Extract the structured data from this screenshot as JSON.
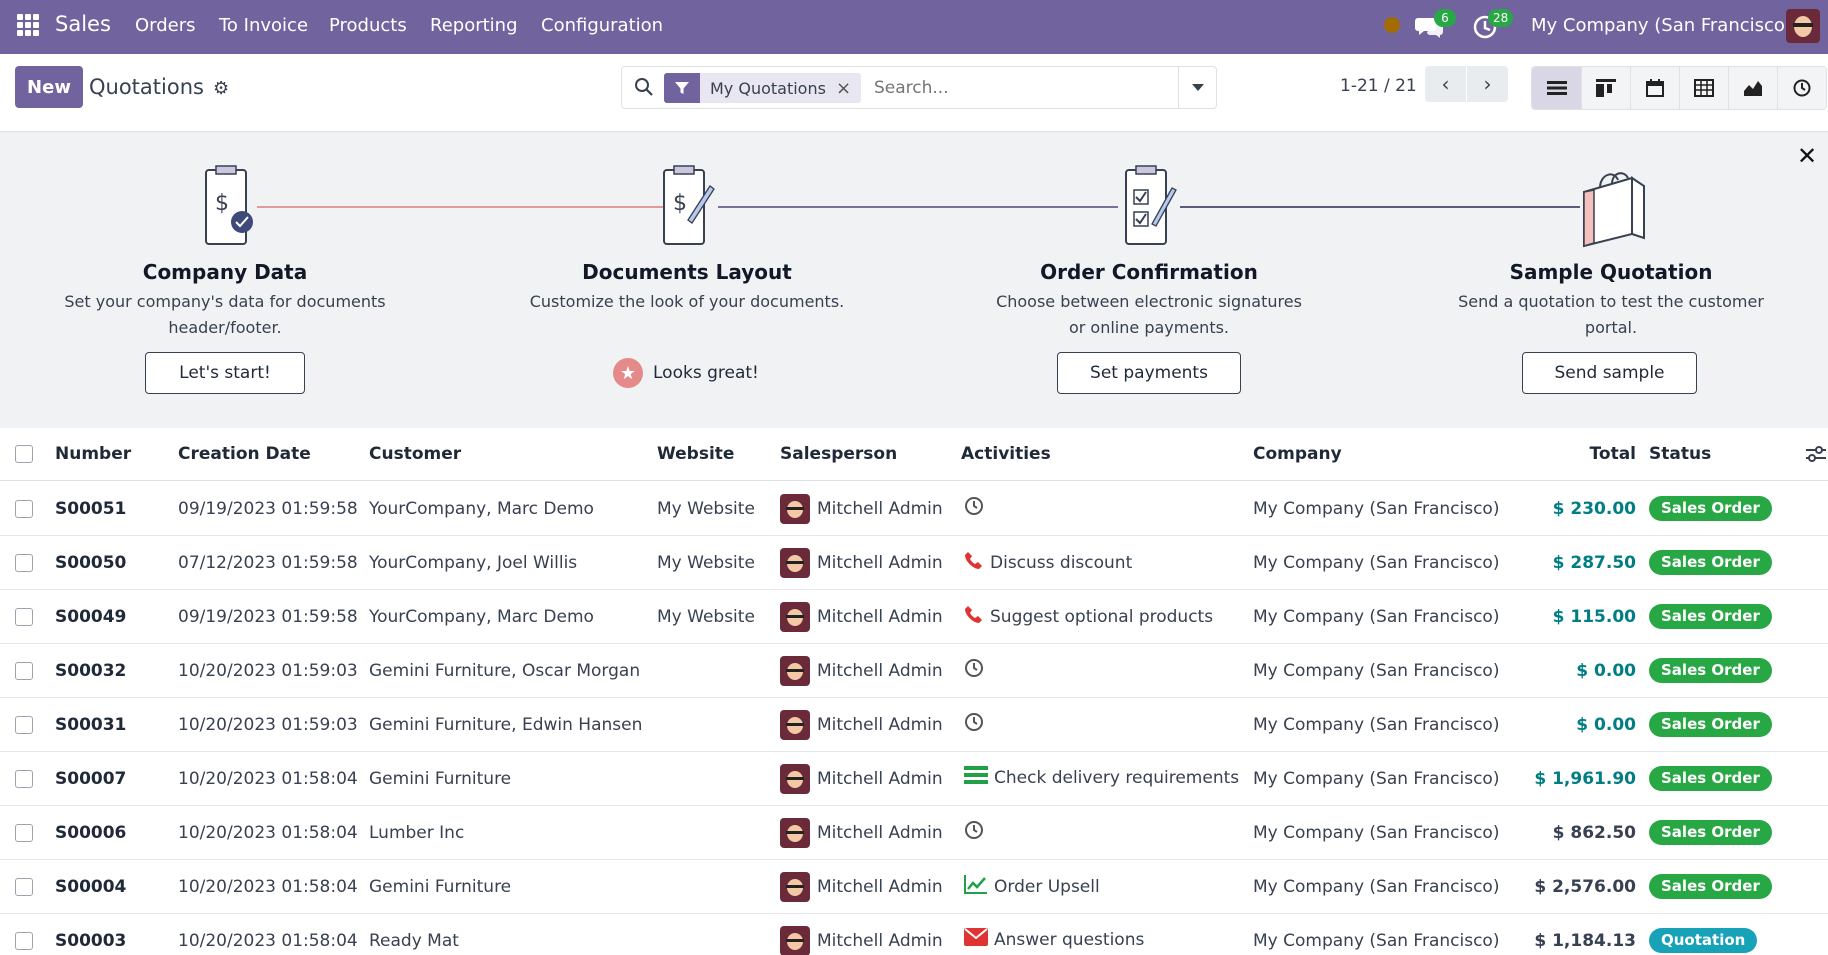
{
  "navbar": {
    "app_name": "Sales",
    "menu": [
      "Orders",
      "To Invoice",
      "Products",
      "Reporting",
      "Configuration"
    ],
    "messages_count": "6",
    "activities_count": "28",
    "company": "My Company (San Francisco)"
  },
  "control": {
    "new_label": "New",
    "title": "Quotations",
    "facet": "My Quotations",
    "search_placeholder": "Search...",
    "pager": "1-21 / 21"
  },
  "onboarding": {
    "steps": [
      {
        "title": "Company Data",
        "desc_line1": "Set your company's data for documents",
        "desc_line2": "header/footer.",
        "button": "Let's start!"
      },
      {
        "title": "Documents Layout",
        "desc_line1": "Customize the look of your documents.",
        "desc_line2": "",
        "done": "Looks great!"
      },
      {
        "title": "Order Confirmation",
        "desc_line1": "Choose between electronic signatures",
        "desc_line2": "or online payments.",
        "button": "Set payments"
      },
      {
        "title": "Sample Quotation",
        "desc_line1": "Send a quotation to test the customer",
        "desc_line2": "portal.",
        "button": "Send sample"
      }
    ]
  },
  "table": {
    "headers": [
      "Number",
      "Creation Date",
      "Customer",
      "Website",
      "Salesperson",
      "Activities",
      "Company",
      "Total",
      "Status"
    ],
    "rows": [
      {
        "number": "S00051",
        "date": "09/19/2023 01:59:58",
        "customer": "YourCompany, Marc Demo",
        "website": "My Website",
        "salesperson": "Mitchell Admin",
        "activity": "",
        "activity_type": "clock",
        "company": "My Company (San Francisco)",
        "total": "$ 230.00",
        "status": "Sales Order"
      },
      {
        "number": "S00050",
        "date": "07/12/2023 01:59:58",
        "customer": "YourCompany, Joel Willis",
        "website": "My Website",
        "salesperson": "Mitchell Admin",
        "activity": "Discuss discount",
        "activity_type": "phone",
        "company": "My Company (San Francisco)",
        "total": "$ 287.50",
        "status": "Sales Order"
      },
      {
        "number": "S00049",
        "date": "09/19/2023 01:59:58",
        "customer": "YourCompany, Marc Demo",
        "website": "My Website",
        "salesperson": "Mitchell Admin",
        "activity": "Suggest optional products",
        "activity_type": "phone",
        "company": "My Company (San Francisco)",
        "total": "$ 115.00",
        "status": "Sales Order"
      },
      {
        "number": "S00032",
        "date": "10/20/2023 01:59:03",
        "customer": "Gemini Furniture, Oscar Morgan",
        "website": "",
        "salesperson": "Mitchell Admin",
        "activity": "",
        "activity_type": "clock",
        "company": "My Company (San Francisco)",
        "total": "$ 0.00",
        "status": "Sales Order"
      },
      {
        "number": "S00031",
        "date": "10/20/2023 01:59:03",
        "customer": "Gemini Furniture, Edwin Hansen",
        "website": "",
        "salesperson": "Mitchell Admin",
        "activity": "",
        "activity_type": "clock",
        "company": "My Company (San Francisco)",
        "total": "$ 0.00",
        "status": "Sales Order"
      },
      {
        "number": "S00007",
        "date": "10/20/2023 01:58:04",
        "customer": "Gemini Furniture",
        "website": "",
        "salesperson": "Mitchell Admin",
        "activity": "Check delivery requirements",
        "activity_type": "list",
        "company": "My Company (San Francisco)",
        "total": "$ 1,961.90",
        "status": "Sales Order"
      },
      {
        "number": "S00006",
        "date": "10/20/2023 01:58:04",
        "customer": "Lumber Inc",
        "website": "",
        "salesperson": "Mitchell Admin",
        "activity": "",
        "activity_type": "clock",
        "company": "My Company (San Francisco)",
        "total": "$ 862.50",
        "status": "Sales Order"
      },
      {
        "number": "S00004",
        "date": "10/20/2023 01:58:04",
        "customer": "Gemini Furniture",
        "website": "",
        "salesperson": "Mitchell Admin",
        "activity": "Order Upsell",
        "activity_type": "chart",
        "company": "My Company (San Francisco)",
        "total": "$ 2,576.00",
        "status": "Sales Order"
      },
      {
        "number": "S00003",
        "date": "10/20/2023 01:58:04",
        "customer": "Ready Mat",
        "website": "",
        "salesperson": "Mitchell Admin",
        "activity": "Answer questions",
        "activity_type": "email",
        "company": "My Company (San Francisco)",
        "total": "$ 1,184.13",
        "status": "Quotation"
      }
    ]
  },
  "colors": {
    "brand": "#71639e",
    "sales_order": "#28a745",
    "quotation": "#17a2b8",
    "total_blue": "#017e84"
  }
}
